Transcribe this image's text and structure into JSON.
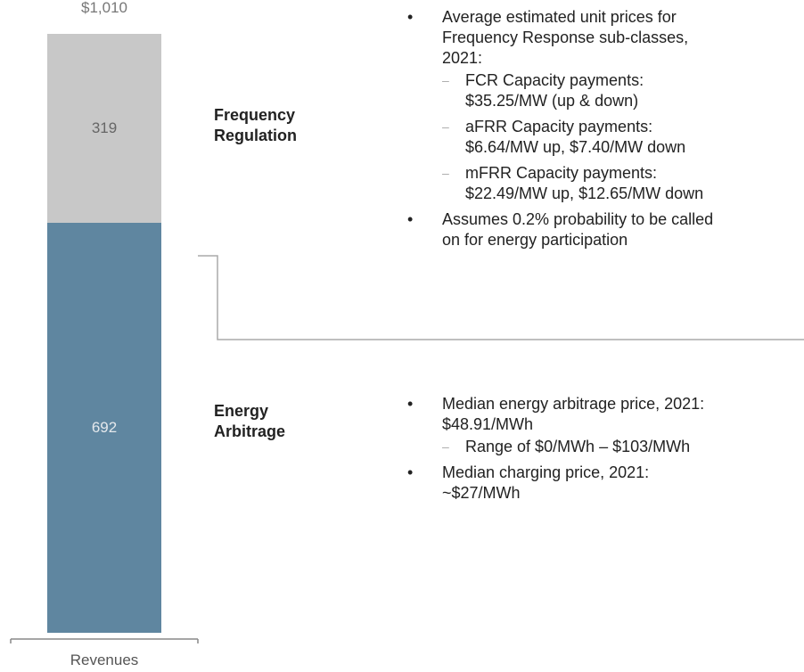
{
  "chart_data": {
    "type": "bar",
    "categories": [
      "Revenues"
    ],
    "series": [
      {
        "name": "Energy Arbitrage",
        "color": "#5f86a0",
        "values": [
          692
        ]
      },
      {
        "name": "Frequency Regulation",
        "color": "#c8c8c8",
        "values": [
          319
        ]
      }
    ],
    "totals": [
      1010
    ],
    "total_labels": [
      "$1,010"
    ],
    "annotations": [
      {
        "series": 1,
        "bullets": [
          {
            "text": "Average estimated unit prices for Frequency Response sub-classes, 2021:",
            "sub": [
              "FCR Capacity payments: $35.25/MW (up & down)",
              "aFRR Capacity payments: $6.64/MW up, $7.40/MW down",
              "mFRR Capacity payments: $22.49/MW up, $12.65/MW down"
            ]
          },
          {
            "text": "Assumes 0.2% probability to be called on for energy participation",
            "sub": []
          }
        ]
      },
      {
        "series": 0,
        "bullets": [
          {
            "text": "Median energy arbitrage price, 2021: $48.91/MWh",
            "sub": [
              "Range of $0/MWh – $103/MWh"
            ]
          },
          {
            "text": "Median charging price, 2021: ~$27/MWh",
            "sub": []
          }
        ]
      }
    ]
  }
}
